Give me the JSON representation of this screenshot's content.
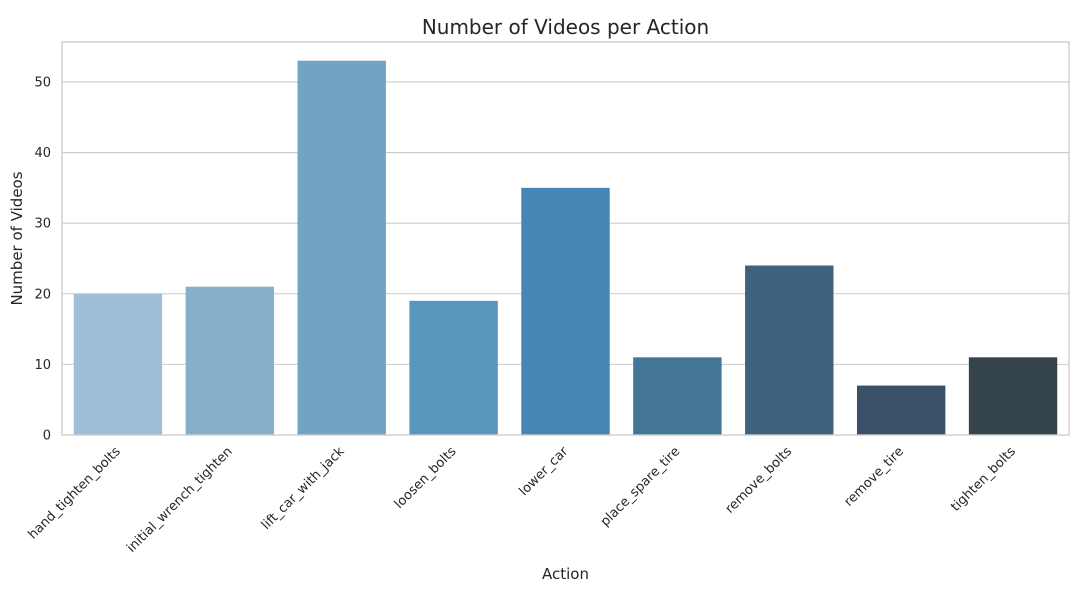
{
  "chart_data": {
    "type": "bar",
    "title": "Number of Videos per Action",
    "xlabel": "Action",
    "ylabel": "Number of Videos",
    "categories": [
      "hand_tighten_bolts",
      "initial_wrench_tighten",
      "lift_car_with_jack",
      "loosen_bolts",
      "lower_car",
      "place_spare_tire",
      "remove_bolts",
      "remove_tire",
      "tighten_bolts"
    ],
    "values": [
      20,
      21,
      53,
      19,
      35,
      11,
      24,
      7,
      11
    ],
    "colors": [
      "#a0bfd7",
      "#87afc9",
      "#72a3c3",
      "#5a95bd",
      "#4786b4",
      "#437597",
      "#3e627d",
      "#3a5169",
      "#35434b"
    ],
    "ylim": [
      0,
      55.65
    ],
    "yticks": [
      0,
      10,
      20,
      30,
      40,
      50
    ],
    "grid": true,
    "grid_axis": "y",
    "legend": "none"
  }
}
